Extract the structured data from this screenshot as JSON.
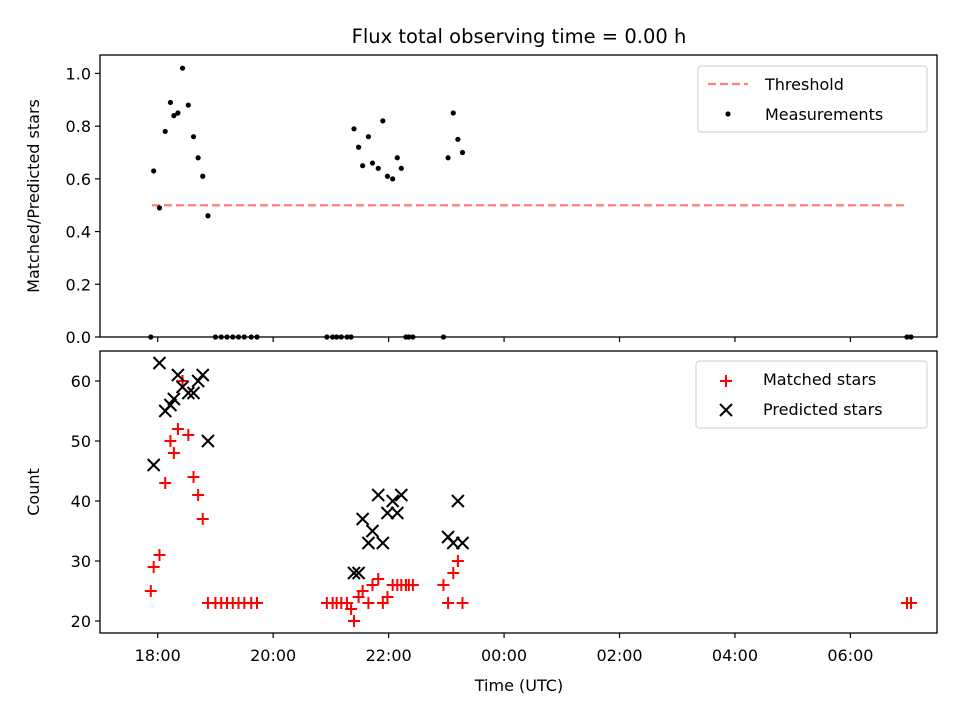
{
  "chart_data": [
    {
      "type": "scatter",
      "title": "Flux total observing time = 0.00 h",
      "xlabel": "",
      "ylabel": "Matched/Predicted stars",
      "ylim": [
        0,
        1.07
      ],
      "yticks": [
        0.0,
        0.2,
        0.4,
        0.6,
        0.8,
        1.0
      ],
      "ytick_labels": [
        "0.0",
        "0.2",
        "0.4",
        "0.6",
        "0.8",
        "1.0"
      ],
      "xlim_hours": [
        17.0,
        31.5
      ],
      "legend": {
        "location": "upper right",
        "entries": [
          "Threshold",
          "Measurements"
        ]
      },
      "threshold": {
        "name": "Threshold",
        "value": 0.5,
        "x_start": 17.9,
        "x_end": 30.95,
        "color": "#ff7f7f",
        "style": "dashed"
      },
      "series": [
        {
          "name": "Measurements",
          "marker": "dot",
          "color": "#000000",
          "x": [
            17.88,
            17.93,
            18.03,
            18.13,
            18.22,
            18.28,
            18.35,
            18.43,
            18.53,
            18.62,
            18.7,
            18.78,
            18.87,
            19.0,
            19.1,
            19.2,
            19.3,
            19.4,
            19.5,
            19.62,
            19.72,
            20.93,
            21.03,
            21.1,
            21.18,
            21.28,
            21.35,
            21.4,
            21.48,
            21.55,
            21.65,
            21.72,
            21.82,
            21.9,
            21.98,
            22.07,
            22.15,
            22.22,
            22.3,
            22.35,
            22.42,
            22.95,
            23.03,
            23.12,
            23.2,
            23.28,
            30.98,
            31.05
          ],
          "y": [
            0.0,
            0.63,
            0.49,
            0.78,
            0.89,
            0.84,
            0.85,
            1.02,
            0.88,
            0.76,
            0.68,
            0.61,
            0.46,
            0.0,
            0.0,
            0.0,
            0.0,
            0.0,
            0.0,
            0.0,
            0.0,
            0.0,
            0.0,
            0.0,
            0.0,
            0.0,
            0.0,
            0.79,
            0.72,
            0.65,
            0.76,
            0.66,
            0.64,
            0.82,
            0.61,
            0.6,
            0.68,
            0.64,
            0.0,
            0.0,
            0.0,
            0.0,
            0.68,
            0.85,
            0.75,
            0.7,
            0.0,
            0.0
          ]
        }
      ]
    },
    {
      "type": "scatter",
      "title": "",
      "xlabel": "Time (UTC)",
      "ylabel": "Count",
      "ylim": [
        18,
        65
      ],
      "yticks": [
        20,
        30,
        40,
        50,
        60
      ],
      "ytick_labels": [
        "20",
        "30",
        "40",
        "50",
        "60"
      ],
      "xlim_hours": [
        17.0,
        31.5
      ],
      "xticks_hours": [
        18,
        20,
        22,
        24,
        26,
        28,
        30
      ],
      "xtick_labels": [
        "18:00",
        "20:00",
        "22:00",
        "00:00",
        "02:00",
        "04:00",
        "06:00"
      ],
      "legend": {
        "location": "upper right",
        "entries": [
          "Matched stars",
          "Predicted stars"
        ]
      },
      "series": [
        {
          "name": "Matched stars",
          "marker": "plus",
          "color": "#ff0000",
          "x": [
            17.88,
            17.93,
            18.03,
            18.13,
            18.22,
            18.28,
            18.35,
            18.43,
            18.53,
            18.62,
            18.7,
            18.78,
            18.87,
            19.0,
            19.1,
            19.2,
            19.3,
            19.4,
            19.5,
            19.62,
            19.72,
            20.93,
            21.03,
            21.1,
            21.18,
            21.28,
            21.35,
            21.4,
            21.48,
            21.55,
            21.65,
            21.72,
            21.82,
            21.9,
            21.98,
            22.07,
            22.15,
            22.22,
            22.3,
            22.35,
            22.42,
            22.95,
            23.03,
            23.12,
            23.2,
            23.28,
            30.98,
            31.05
          ],
          "y": [
            25,
            29,
            31,
            43,
            50,
            48,
            52,
            60,
            51,
            44,
            41,
            37,
            23,
            23,
            23,
            23,
            23,
            23,
            23,
            23,
            23,
            23,
            23,
            23,
            23,
            23,
            22,
            20,
            24,
            25,
            23,
            26,
            27,
            23,
            24,
            26,
            26,
            26,
            26,
            26,
            26,
            26,
            23,
            28,
            30,
            23,
            23,
            23
          ]
        },
        {
          "name": "Predicted stars",
          "marker": "x",
          "color": "#000000",
          "x": [
            17.93,
            18.03,
            18.13,
            18.22,
            18.28,
            18.35,
            18.43,
            18.53,
            18.62,
            18.7,
            18.78,
            18.87,
            21.4,
            21.48,
            21.55,
            21.65,
            21.72,
            21.82,
            21.9,
            21.98,
            22.07,
            22.15,
            22.22,
            23.03,
            23.12,
            23.2,
            23.28
          ],
          "y": [
            46,
            63,
            55,
            56,
            57,
            61,
            59,
            58,
            58,
            60,
            61,
            50,
            28,
            28,
            37,
            33,
            35,
            41,
            33,
            38,
            40,
            38,
            41,
            34,
            33,
            40,
            33
          ]
        }
      ]
    }
  ]
}
